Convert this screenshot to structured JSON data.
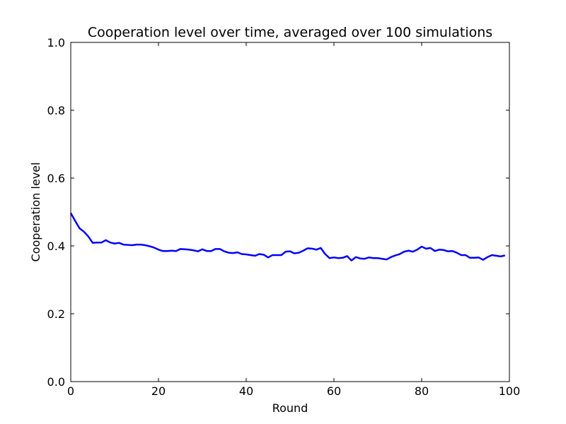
{
  "chart_data": {
    "type": "line",
    "title": "Cooperation level over time, averaged over 100 simulations",
    "xlabel": "Round",
    "ylabel": "Cooperation level",
    "xlim": [
      0,
      100
    ],
    "ylim": [
      0.0,
      1.0
    ],
    "xticks": [
      0,
      20,
      40,
      60,
      80,
      100
    ],
    "xtick_labels": [
      "0",
      "20",
      "40",
      "60",
      "80",
      "100"
    ],
    "yticks": [
      0.0,
      0.2,
      0.4,
      0.6,
      0.8,
      1.0
    ],
    "ytick_labels": [
      "0.0",
      "0.2",
      "0.4",
      "0.6",
      "0.8",
      "1.0"
    ],
    "grid": false,
    "legend": "none",
    "series": [
      {
        "color": "#0000ff",
        "x": [
          0,
          1,
          2,
          3,
          4,
          5,
          6,
          7,
          8,
          9,
          10,
          11,
          12,
          13,
          14,
          15,
          16,
          17,
          18,
          19,
          20,
          21,
          22,
          23,
          24,
          25,
          26,
          27,
          28,
          29,
          30,
          31,
          32,
          33,
          34,
          35,
          36,
          37,
          38,
          39,
          40,
          41,
          42,
          43,
          44,
          45,
          46,
          47,
          48,
          49,
          50,
          51,
          52,
          53,
          54,
          55,
          56,
          57,
          58,
          59,
          60,
          61,
          62,
          63,
          64,
          65,
          66,
          67,
          68,
          69,
          70,
          71,
          72,
          73,
          74,
          75,
          76,
          77,
          78,
          79,
          80,
          81,
          82,
          83,
          84,
          85,
          86,
          87,
          88,
          89,
          90,
          91,
          92,
          93,
          94,
          95,
          96,
          97,
          98,
          99
        ],
        "values": [
          0.497,
          0.474,
          0.452,
          0.442,
          0.428,
          0.409,
          0.41,
          0.41,
          0.417,
          0.41,
          0.407,
          0.409,
          0.404,
          0.403,
          0.402,
          0.404,
          0.404,
          0.402,
          0.399,
          0.395,
          0.389,
          0.385,
          0.385,
          0.386,
          0.385,
          0.391,
          0.39,
          0.389,
          0.387,
          0.384,
          0.39,
          0.385,
          0.385,
          0.391,
          0.391,
          0.384,
          0.38,
          0.379,
          0.381,
          0.376,
          0.375,
          0.373,
          0.371,
          0.376,
          0.374,
          0.366,
          0.373,
          0.373,
          0.373,
          0.383,
          0.384,
          0.378,
          0.38,
          0.386,
          0.393,
          0.392,
          0.389,
          0.394,
          0.376,
          0.364,
          0.366,
          0.364,
          0.365,
          0.37,
          0.357,
          0.367,
          0.363,
          0.362,
          0.366,
          0.364,
          0.364,
          0.362,
          0.36,
          0.367,
          0.372,
          0.376,
          0.383,
          0.386,
          0.383,
          0.389,
          0.398,
          0.392,
          0.394,
          0.385,
          0.389,
          0.388,
          0.384,
          0.385,
          0.38,
          0.373,
          0.373,
          0.365,
          0.365,
          0.366,
          0.359,
          0.367,
          0.373,
          0.371,
          0.369,
          0.372
        ]
      }
    ]
  }
}
